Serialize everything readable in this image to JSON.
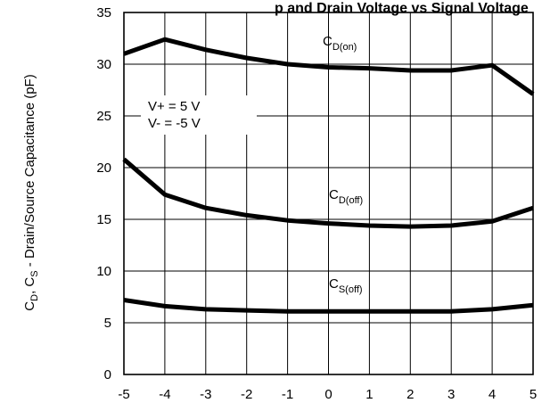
{
  "chart_data": {
    "type": "line",
    "title": "p and Drain Voltage vs Signal Voltage",
    "ylabel": {
      "main": "C",
      "sub1": "D",
      "mid": ", C",
      "sub2": "S",
      "rest": " - Drain/Source Capacitance (pF)"
    },
    "xlabel": "",
    "x": [
      -5,
      -4,
      -3,
      -2,
      -1,
      0,
      1,
      2,
      3,
      4,
      5
    ],
    "xlim": [
      -5,
      5
    ],
    "ylim": [
      0,
      35
    ],
    "xticks": [
      "-5",
      "-4",
      "-3",
      "-2",
      "-1",
      "0",
      "1",
      "2",
      "3",
      "4",
      "5"
    ],
    "yticks": [
      "0",
      "5",
      "10",
      "15",
      "20",
      "25",
      "30",
      "35"
    ],
    "grid": true,
    "series": [
      {
        "label_main": "C",
        "label_sub": "D(on)",
        "values": [
          31.0,
          32.4,
          31.4,
          30.6,
          30.0,
          29.7,
          29.6,
          29.4,
          29.4,
          29.9,
          27.1
        ]
      },
      {
        "label_main": "C",
        "label_sub": "D(off)",
        "values": [
          20.8,
          17.4,
          16.1,
          15.4,
          14.9,
          14.6,
          14.4,
          14.3,
          14.4,
          14.8,
          16.1
        ]
      },
      {
        "label_main": "C",
        "label_sub": "S(off)",
        "values": [
          7.2,
          6.6,
          6.3,
          6.2,
          6.1,
          6.1,
          6.1,
          6.1,
          6.1,
          6.3,
          6.7
        ]
      }
    ],
    "annotations": [
      "V+ = 5 V",
      "V- = -5 V"
    ]
  }
}
